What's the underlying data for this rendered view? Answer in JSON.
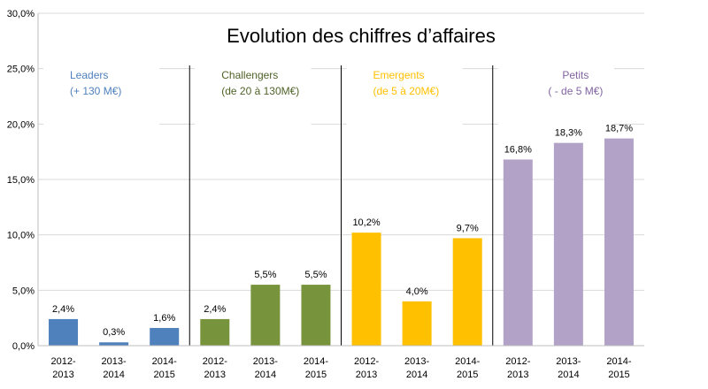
{
  "chart_data": {
    "type": "bar",
    "title": "Evolution des chiffres d’affaires",
    "xlabel": "",
    "ylabel": "",
    "ylim": [
      0,
      30
    ],
    "y_ticks": [
      "0,0%",
      "5,0%",
      "10,0%",
      "15,0%",
      "20,0%",
      "25,0%",
      "30,0%"
    ],
    "y_tick_values": [
      0,
      5,
      10,
      15,
      20,
      25,
      30
    ],
    "grid": true,
    "groups": [
      {
        "name": "Leaders",
        "sublabel": "(+ 130 M€)",
        "color": "#4f81bd",
        "label_color": "#4f81bd",
        "categories": [
          "2012-\n2013",
          "2013-\n2014",
          "2014-\n2015"
        ],
        "values": [
          2.4,
          0.3,
          1.6
        ],
        "value_labels": [
          "2,4%",
          "0,3%",
          "1,6%"
        ]
      },
      {
        "name": "Challengers",
        "sublabel": "(de 20 à 130M€)",
        "color": "#77933c",
        "label_color": "#4f6228",
        "categories": [
          "2012-\n2013",
          "2013-\n2014",
          "2014-\n2015"
        ],
        "values": [
          2.4,
          5.5,
          5.5
        ],
        "value_labels": [
          "2,4%",
          "5,5%",
          "5,5%"
        ]
      },
      {
        "name": "Emergents",
        "sublabel": "(de 5 à 20M€)",
        "color": "#ffc000",
        "label_color": "#ffc000",
        "categories": [
          "2012-\n2013",
          "2013-\n2014",
          "2014-\n2015"
        ],
        "values": [
          10.2,
          4.0,
          9.7
        ],
        "value_labels": [
          "10,2%",
          "4,0%",
          "9,7%"
        ]
      },
      {
        "name": "Petits",
        "sublabel": "( - de 5 M€)",
        "color": "#b3a2c7",
        "label_color": "#8064a2",
        "categories": [
          "2012-\n2013",
          "2013-\n2014",
          "2014-\n2015"
        ],
        "values": [
          16.8,
          18.3,
          18.7
        ],
        "value_labels": [
          "16,8%",
          "18,3%",
          "18,7%"
        ]
      }
    ]
  }
}
